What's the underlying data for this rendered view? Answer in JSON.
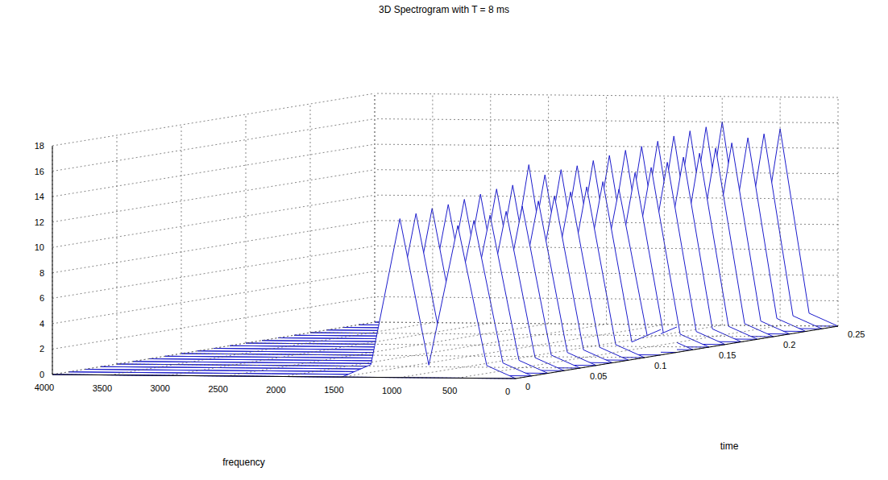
{
  "chart_data": {
    "type": "waterfall",
    "title": "3D Spectrogram with T = 8 ms",
    "x_label": "frequency",
    "y_label": "time",
    "xlim": [
      0,
      4000
    ],
    "xticks": [
      0,
      500,
      1000,
      1500,
      2000,
      2500,
      3000,
      3500,
      4000
    ],
    "ylim": [
      0,
      0.25
    ],
    "yticks": [
      0,
      0.05,
      0.1,
      0.15,
      0.2,
      0.25
    ],
    "zlim": [
      0,
      18
    ],
    "zticks": [
      0,
      2,
      4,
      6,
      8,
      10,
      12,
      14,
      16,
      18
    ],
    "grid": true,
    "color": "#1c1ccc",
    "x": [
      0,
      250,
      500,
      750,
      1000,
      1250,
      1500,
      1750,
      2000,
      2250,
      2500,
      2750,
      3000,
      3250,
      3500,
      3750,
      4000
    ],
    "y": [
      0,
      0.0125,
      0.025,
      0.0375,
      0.05,
      0.0625,
      0.075,
      0.0875,
      0.1,
      0.1125,
      0.125,
      0.1375,
      0.15,
      0.1625,
      0.175,
      0.1875,
      0.2,
      0.2125,
      0.225,
      0.2375,
      0.25
    ],
    "z": [
      [
        0,
        1,
        12.0,
        1,
        12.5,
        1,
        0,
        0,
        0,
        0,
        0,
        0,
        0,
        0,
        0,
        0,
        0
      ],
      [
        0,
        1,
        12.2,
        1,
        12.7,
        1,
        0,
        0,
        0,
        0,
        0,
        0,
        0,
        0,
        0,
        0,
        0
      ],
      [
        0,
        1,
        12.4,
        1,
        12.9,
        1,
        0,
        0,
        0,
        0,
        0,
        0,
        0,
        0,
        0,
        0,
        0
      ],
      [
        0,
        1,
        12.5,
        1,
        13.0,
        1,
        0,
        0,
        0,
        0,
        0,
        0,
        0,
        0,
        0,
        0,
        0
      ],
      [
        0,
        1,
        12.7,
        1,
        13.2,
        1,
        0,
        0,
        0,
        0,
        0,
        0,
        0,
        0,
        0,
        0,
        0
      ],
      [
        0,
        1,
        12.9,
        1,
        13.4,
        1,
        0,
        0,
        0,
        0,
        0,
        0,
        0,
        0,
        0,
        0,
        0
      ],
      [
        0,
        1,
        13.1,
        1,
        13.6,
        1,
        0,
        0,
        0,
        0,
        0,
        0,
        0,
        0,
        0,
        0,
        0
      ],
      [
        0,
        1,
        13.2,
        1,
        13.7,
        1,
        0,
        0,
        0,
        0,
        0,
        0,
        0,
        0,
        0,
        0,
        0
      ],
      [
        0,
        1,
        13.4,
        1,
        15.1,
        1,
        0,
        0,
        0,
        0,
        0,
        0,
        0,
        0,
        0,
        0,
        0
      ],
      [
        2,
        1,
        13.6,
        1,
        14.1,
        1,
        0,
        0,
        0,
        0,
        0,
        0,
        0,
        0,
        0,
        0,
        0
      ],
      [
        2,
        1,
        12.8,
        1,
        14.3,
        1,
        0,
        0,
        0,
        0,
        0,
        0,
        0,
        0,
        0,
        0,
        0
      ],
      [
        0,
        1,
        13.9,
        1,
        14.4,
        1,
        0,
        0,
        0,
        0,
        0,
        0,
        0,
        0,
        0,
        0,
        0
      ],
      [
        0,
        1,
        14.1,
        1,
        14.6,
        1,
        0,
        0,
        0,
        0,
        0,
        0,
        0,
        0,
        0,
        0,
        0
      ],
      [
        0,
        1,
        14.3,
        1,
        14.8,
        1,
        0,
        0,
        0,
        0,
        0,
        0,
        0,
        0,
        0,
        0,
        0
      ],
      [
        0,
        1,
        14.5,
        1,
        15.0,
        1,
        0,
        0,
        0,
        0,
        0,
        0,
        0,
        0,
        0,
        0,
        0
      ],
      [
        0,
        1,
        14.6,
        1,
        15.1,
        1,
        0,
        0,
        0,
        0,
        0,
        0,
        0,
        0,
        0,
        0,
        0
      ],
      [
        0,
        1,
        14.8,
        1,
        15.3,
        1,
        0,
        0,
        0,
        0,
        0,
        0,
        0,
        0,
        0,
        0,
        0
      ],
      [
        0,
        1,
        15.0,
        1,
        15.5,
        1,
        0,
        0,
        0,
        0,
        0,
        0,
        0,
        0,
        0,
        0,
        0
      ],
      [
        0,
        1,
        15.2,
        1,
        15.7,
        1,
        0,
        0,
        0,
        0,
        0,
        0,
        0,
        0,
        0,
        0,
        0
      ],
      [
        0,
        1,
        15.3,
        1,
        15.8,
        1,
        0,
        0,
        0,
        0,
        0,
        0,
        0,
        0,
        0,
        0,
        0
      ],
      [
        0,
        1,
        15.5,
        1,
        16.0,
        1,
        0,
        0,
        0,
        0,
        0,
        0,
        0,
        0,
        0,
        0,
        0
      ]
    ]
  }
}
